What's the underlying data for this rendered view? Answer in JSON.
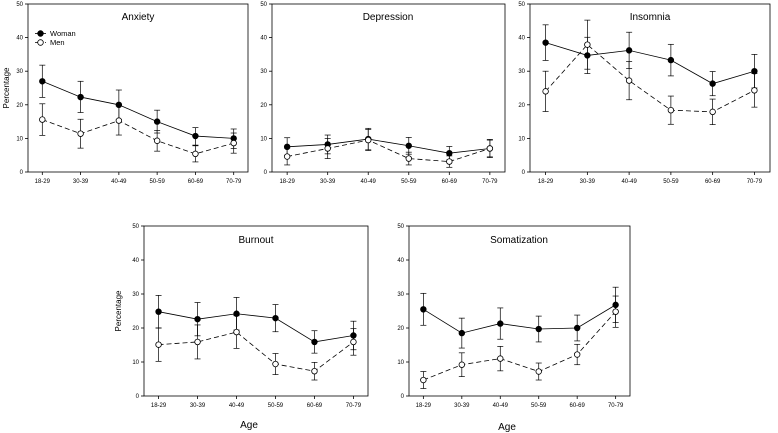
{
  "figure": {
    "x_title": "Age",
    "y_title": "Percentage"
  },
  "legend": {
    "women": "Woman",
    "men": "Men"
  },
  "chart_data": [
    {
      "type": "line",
      "title": "Anxiety",
      "categories": [
        "18-29",
        "30-39",
        "40-49",
        "50-59",
        "60-69",
        "70-79"
      ],
      "ylim": [
        0,
        50
      ],
      "yticks": [
        0,
        10,
        20,
        30,
        40,
        50
      ],
      "series": [
        {
          "name": "Woman",
          "values": [
            27,
            22.3,
            20,
            15,
            10.7,
            10
          ],
          "lower": [
            22.2,
            17.7,
            15.6,
            11.6,
            8,
            7
          ],
          "upper": [
            31.8,
            27,
            24.4,
            18.4,
            13.2,
            12.8
          ]
        },
        {
          "name": "Men",
          "values": [
            15.6,
            11.4,
            15.3,
            9.3,
            5.4,
            8.6
          ],
          "lower": [
            10.9,
            7.1,
            11,
            6.2,
            3,
            5.6
          ],
          "upper": [
            20.3,
            15.7,
            19.6,
            12.4,
            7.8,
            11.6
          ]
        }
      ]
    },
    {
      "type": "line",
      "title": "Depression",
      "categories": [
        "18-29",
        "30-39",
        "40-49",
        "50-59",
        "60-69",
        "70-79"
      ],
      "ylim": [
        0,
        50
      ],
      "yticks": [
        0,
        10,
        20,
        30,
        40,
        50
      ],
      "series": [
        {
          "name": "Woman",
          "values": [
            7.5,
            8.2,
            9.8,
            7.8,
            5.6,
            7
          ],
          "lower": [
            4.8,
            5.4,
            6.6,
            5.3,
            3.6,
            4.5
          ],
          "upper": [
            10.2,
            11,
            13,
            10.3,
            7.6,
            9.5
          ]
        },
        {
          "name": "Men",
          "values": [
            4.6,
            7,
            9.5,
            4,
            3.1,
            7
          ],
          "lower": [
            2.1,
            4,
            6.4,
            2.1,
            1.4,
            4.3
          ],
          "upper": [
            7.1,
            10,
            12.6,
            5.9,
            4.8,
            9.7
          ]
        }
      ]
    },
    {
      "type": "line",
      "title": "Insomnia",
      "categories": [
        "18-29",
        "30-39",
        "40-49",
        "50-59",
        "60-69",
        "70-79"
      ],
      "ylim": [
        0,
        50
      ],
      "yticks": [
        0,
        10,
        20,
        30,
        40,
        50
      ],
      "series": [
        {
          "name": "Woman",
          "values": [
            38.5,
            34.7,
            36.2,
            33.3,
            26.3,
            30
          ],
          "lower": [
            33.2,
            29.3,
            30.8,
            28.6,
            22.7,
            25
          ],
          "upper": [
            43.8,
            40.1,
            41.6,
            38,
            29.9,
            35
          ]
        },
        {
          "name": "Men",
          "values": [
            24,
            37.9,
            27.2,
            18.4,
            17.9,
            24.3
          ],
          "lower": [
            18,
            30.6,
            21.5,
            14.2,
            14.1,
            19.3
          ],
          "upper": [
            30,
            45.2,
            32.9,
            22.6,
            21.7,
            29.3
          ]
        }
      ]
    },
    {
      "type": "line",
      "title": "Burnout",
      "categories": [
        "18-29",
        "30-39",
        "40-49",
        "50-59",
        "60-69",
        "70-79"
      ],
      "ylim": [
        0,
        50
      ],
      "yticks": [
        0,
        10,
        20,
        30,
        40,
        50
      ],
      "series": [
        {
          "name": "Woman",
          "values": [
            24.8,
            22.6,
            24.2,
            22.9,
            15.9,
            17.8
          ],
          "lower": [
            20,
            17.7,
            19.4,
            18.9,
            12.6,
            13.6
          ],
          "upper": [
            29.6,
            27.5,
            29,
            26.9,
            19.2,
            22
          ]
        },
        {
          "name": "Men",
          "values": [
            15.1,
            15.9,
            18.8,
            9.4,
            7.3,
            15.9
          ],
          "lower": [
            10.2,
            10.9,
            14,
            6.3,
            4.7,
            12
          ],
          "upper": [
            20,
            20.9,
            23.6,
            12.5,
            9.9,
            19.8
          ]
        }
      ]
    },
    {
      "type": "line",
      "title": "Somatization",
      "categories": [
        "18-29",
        "30-39",
        "40-49",
        "50-59",
        "60-69",
        "70-79"
      ],
      "ylim": [
        0,
        50
      ],
      "yticks": [
        0,
        10,
        20,
        30,
        40,
        50
      ],
      "series": [
        {
          "name": "Woman",
          "values": [
            25.5,
            18.5,
            21.3,
            19.7,
            20,
            26.8
          ],
          "lower": [
            20.8,
            14.1,
            16.7,
            15.9,
            16.2,
            21.6
          ],
          "upper": [
            30.2,
            22.9,
            25.9,
            23.5,
            23.8,
            32
          ]
        },
        {
          "name": "Men",
          "values": [
            4.7,
            9.2,
            11,
            7.2,
            12.2,
            24.8
          ],
          "lower": [
            2.2,
            5.7,
            7.4,
            4.7,
            9.2,
            20.2
          ],
          "upper": [
            7.2,
            12.7,
            14.6,
            9.7,
            15.2,
            29.4
          ]
        }
      ]
    }
  ]
}
